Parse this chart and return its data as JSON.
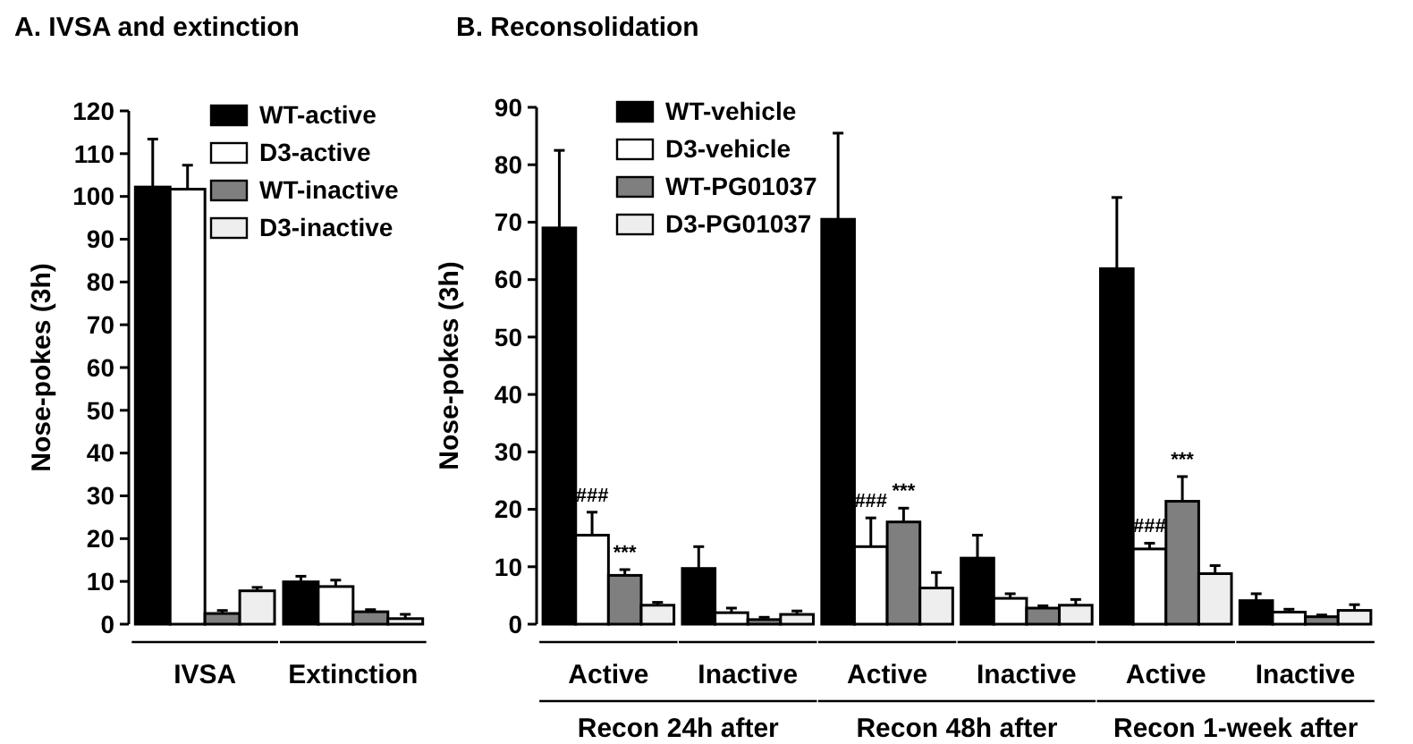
{
  "chart_data": [
    {
      "type": "bar",
      "title": "A. IVSA and extinction",
      "ylabel": "Nose-pokes (3h)",
      "categories": [
        "IVSA",
        "Extinction"
      ],
      "ylim": [
        0,
        120
      ],
      "yticks": [
        0,
        10,
        20,
        30,
        40,
        50,
        60,
        70,
        80,
        90,
        100,
        110,
        120
      ],
      "legend": "top right",
      "grid": false,
      "series": [
        {
          "name": "WT-active",
          "color": "#000000",
          "values": [
            102.2,
            9.9
          ],
          "errors": [
            [
              102.2,
              113.4
            ],
            [
              9.9,
              11.2
            ]
          ]
        },
        {
          "name": "D3-active",
          "color": "#ffffff",
          "values": [
            101.7,
            8.8
          ],
          "errors": [
            [
              101.7,
              107.3
            ],
            [
              8.8,
              10.3
            ]
          ]
        },
        {
          "name": "WT-inactive",
          "color": "#7f7f7f",
          "values": [
            2.5,
            2.9
          ],
          "errors": [
            [
              2.5,
              3.2
            ],
            [
              2.9,
              3.4
            ]
          ]
        },
        {
          "name": "D3-inactive",
          "color": "#eeeeee",
          "values": [
            7.8,
            1.3
          ],
          "errors": [
            [
              7.8,
              8.6
            ],
            [
              1.3,
              2.3
            ]
          ]
        }
      ]
    },
    {
      "type": "bar",
      "title": "B. Reconsolidation",
      "ylabel": "Nose-pokes (3h)",
      "categories": [
        "Active",
        "Inactive",
        "Active",
        "Inactive",
        "Active",
        "Inactive"
      ],
      "ylim": [
        0,
        90
      ],
      "yticks": [
        0,
        10,
        20,
        30,
        40,
        50,
        60,
        70,
        80,
        90
      ],
      "legend": "top left",
      "grid": false,
      "annotations": [
        "Recon 24h after",
        "Recon 48h after",
        "Recon 1-week after"
      ],
      "series": [
        {
          "name": "WT-vehicle",
          "color": "#000000",
          "values": [
            69,
            9.7,
            70.5,
            11.5,
            61.9,
            4.1
          ],
          "errors": [
            [
              69,
              82.5
            ],
            [
              9.7,
              13.5
            ],
            [
              70.5,
              85.5
            ],
            [
              11.5,
              15.5
            ],
            [
              61.9,
              74.3
            ],
            [
              4.1,
              5.3
            ]
          ]
        },
        {
          "name": "D3-vehicle",
          "color": "#ffffff",
          "values": [
            15.5,
            2,
            13.5,
            4.5,
            13.1,
            2.1
          ],
          "errors": [
            [
              15.5,
              19.5
            ],
            [
              2,
              2.8
            ],
            [
              13.5,
              18.5
            ],
            [
              4.5,
              5.3
            ],
            [
              13.1,
              14.1
            ],
            [
              2.1,
              2.6
            ]
          ],
          "value_labels": [
            "###",
            null,
            "###",
            null,
            "###",
            null
          ]
        },
        {
          "name": "WT-PG01037",
          "color": "#7f7f7f",
          "values": [
            8.5,
            0.8,
            17.8,
            2.8,
            21.4,
            1.3
          ],
          "errors": [
            [
              8.5,
              9.5
            ],
            [
              0.8,
              1.2
            ],
            [
              17.8,
              20.2
            ],
            [
              2.8,
              3.2
            ],
            [
              21.4,
              25.7
            ],
            [
              1.3,
              1.6
            ]
          ],
          "value_labels": [
            "***",
            null,
            "***",
            null,
            "***",
            null
          ]
        },
        {
          "name": "D3-PG01037",
          "color": "#eeeeee",
          "values": [
            3.3,
            1.7,
            6.3,
            3.3,
            8.8,
            2.4
          ],
          "errors": [
            [
              3.3,
              3.8
            ],
            [
              1.7,
              2.3
            ],
            [
              6.3,
              9
            ],
            [
              3.3,
              4.3
            ],
            [
              8.8,
              10.2
            ],
            [
              2.4,
              3.4
            ]
          ]
        }
      ]
    }
  ]
}
